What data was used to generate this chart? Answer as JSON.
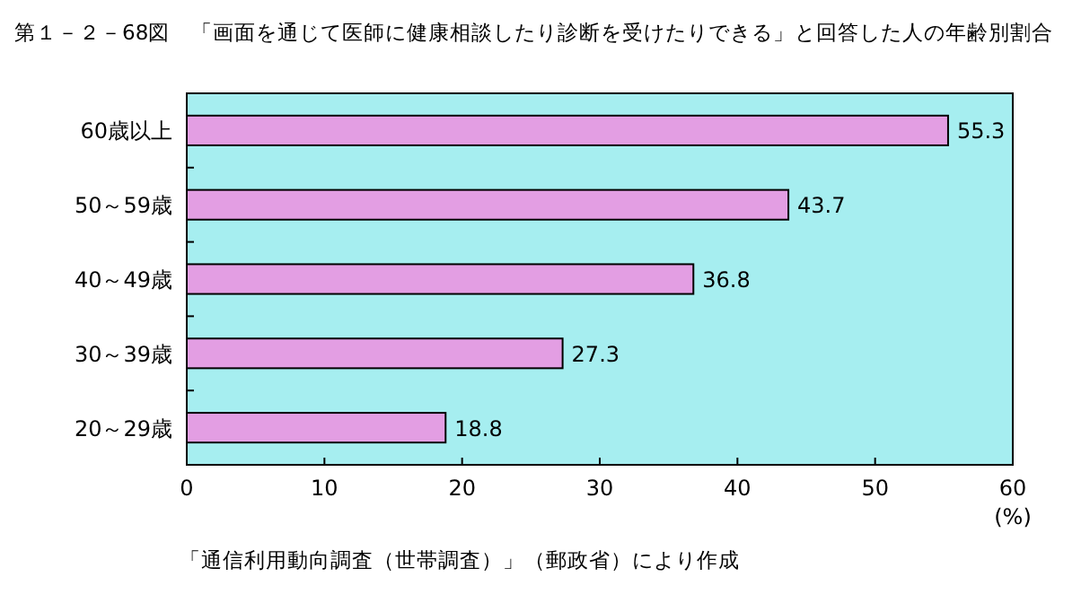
{
  "chart_data": {
    "type": "bar",
    "orientation": "horizontal",
    "title": "第１－２－68図　「画面を通じて医師に健康相談したり診断を受けたりできる」と回答した人の年齢別割合",
    "categories": [
      "60歳以上",
      "50～59歳",
      "40～49歳",
      "30～39歳",
      "20～29歳"
    ],
    "values": [
      55.3,
      43.7,
      36.8,
      27.3,
      18.8
    ],
    "color": "#e39ee3",
    "xlim": [
      0,
      60
    ],
    "xticks": [
      0,
      10,
      20,
      30,
      40,
      50,
      60
    ],
    "xlabel": "(%)",
    "data_labels": true,
    "annotations": [
      "「通信利用動向調査（世帯調査）」（郵政省）により作成"
    ]
  }
}
